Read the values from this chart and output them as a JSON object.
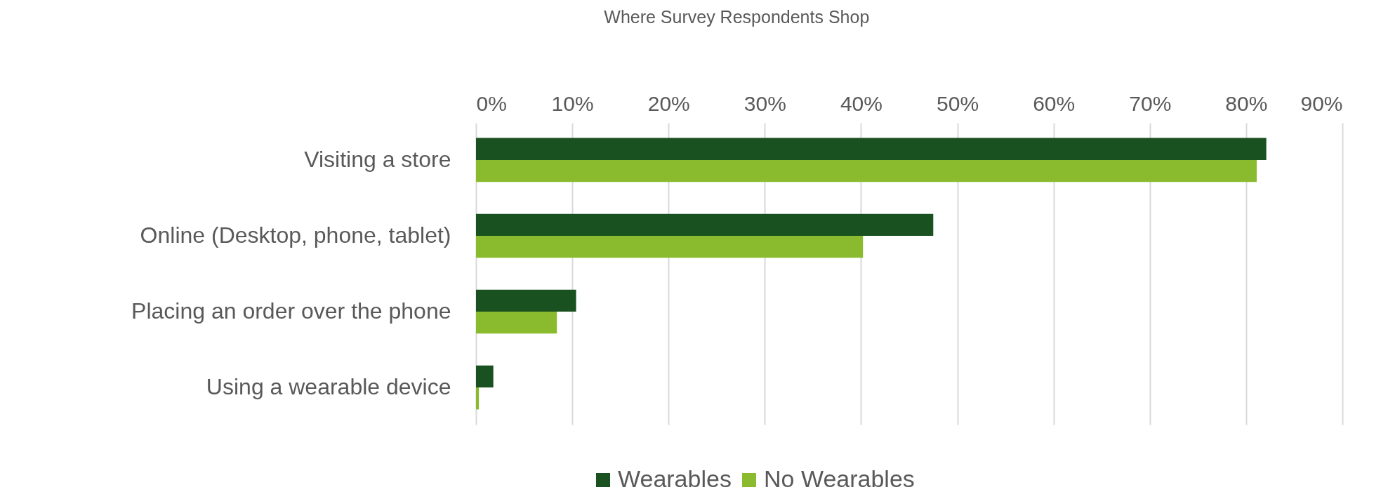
{
  "chart_data": {
    "type": "bar",
    "orientation": "horizontal",
    "title": "Where Survey Respondents Shop",
    "categories": [
      "Visiting a store",
      "Online (Desktop, phone, tablet)",
      "Placing an order over the phone",
      "Using a wearable device"
    ],
    "series": [
      {
        "name": "Wearables",
        "color": "#1a5121",
        "values": [
          82.1,
          47.5,
          10.4,
          1.8
        ]
      },
      {
        "name": "No Wearables",
        "color": "#8aba2d",
        "values": [
          81.1,
          40.2,
          8.4,
          0.3
        ]
      }
    ],
    "xlim": [
      0,
      90
    ],
    "xticks": [
      {
        "value": 0,
        "label": "0%"
      },
      {
        "value": 10,
        "label": "10%"
      },
      {
        "value": 20,
        "label": "20%"
      },
      {
        "value": 30,
        "label": "30%"
      },
      {
        "value": 40,
        "label": "40%"
      },
      {
        "value": 50,
        "label": "50%"
      },
      {
        "value": 60,
        "label": "60%"
      },
      {
        "value": 70,
        "label": "70%"
      },
      {
        "value": 80,
        "label": "80%"
      },
      {
        "value": 90,
        "label": "90%"
      }
    ],
    "grid": "x",
    "legend": "bottom"
  }
}
